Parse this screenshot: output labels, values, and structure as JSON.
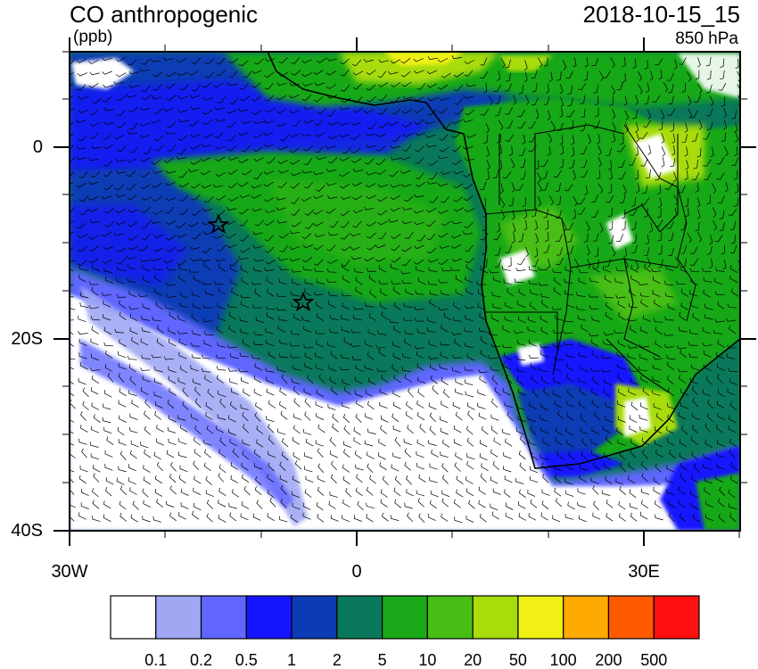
{
  "header": {
    "variable": "CO anthropogenic",
    "units": "(ppb)",
    "datetime": "2018-10-15_15",
    "level": "850 hPa"
  },
  "axes": {
    "lat_labels": [
      "0",
      "20S",
      "40S"
    ],
    "lon_labels": [
      "30W",
      "0",
      "30E"
    ]
  },
  "colorbar": {
    "colors": [
      "#ffffff",
      "#a0a8f4",
      "#6066ff",
      "#1414ff",
      "#0c3cb4",
      "#0a785a",
      "#18a818",
      "#48be14",
      "#a8dc0a",
      "#f0f014",
      "#ffaa00",
      "#ff5a00",
      "#ff0f0f"
    ],
    "labels": [
      "0.1",
      "0.2",
      "0.5",
      "1",
      "2",
      "5",
      "10",
      "20",
      "50",
      "100",
      "200",
      "500"
    ]
  },
  "map_colors": {
    "ocean_background": "#0a785a",
    "land_dominant": "#18a818",
    "clean_air": "#ffffff",
    "low_concentration": "#1414ff"
  }
}
